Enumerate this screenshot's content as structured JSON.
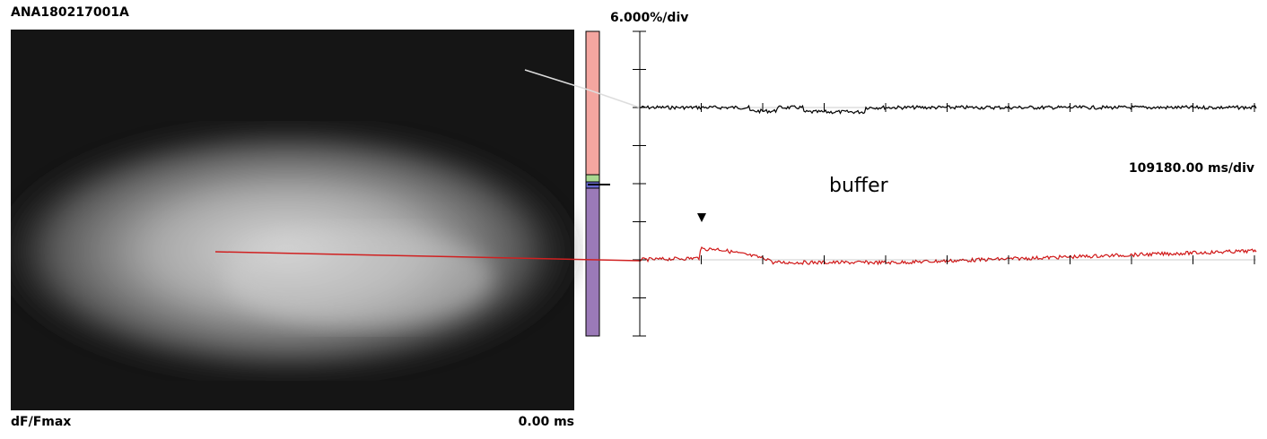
{
  "header": {
    "file_id": "ANA180217001A"
  },
  "scale": {
    "y_per_div": "6.000%/div",
    "x_per_div": "109180.00 ms/div"
  },
  "image": {
    "measure": "dF/Fmax",
    "time": "0.00 ms"
  },
  "annotation": {
    "label": "buffer"
  }
}
